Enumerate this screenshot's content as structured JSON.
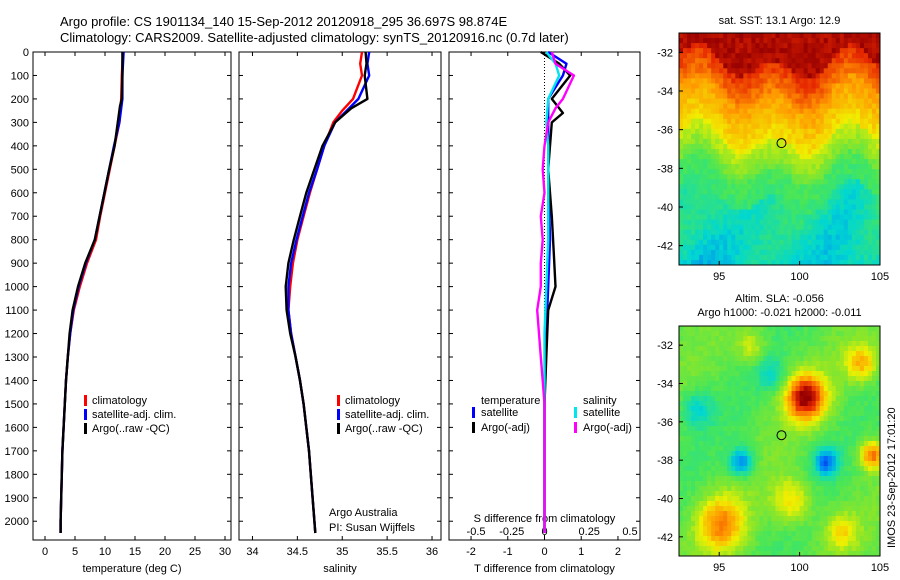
{
  "header": {
    "line1": "Argo profile: CS 1901134_140 15-Sep-2012 20120918_295 36.697S 98.874E",
    "line2": "Climatology: CARS2009. Satellite-adjusted climatology: synTS_20120916.nc (0.7d later)"
  },
  "footer": {
    "credit_org": "Argo Australia",
    "credit_pi": "PI: Susan Wijffels",
    "watermark": "IMOS 23-Sep-2012 17:01:20"
  },
  "colors": {
    "climatology": "#ff0000",
    "satellite": "#0000ff",
    "argo": "#000000",
    "sat_salinity": "#00e5ee",
    "argo_salinity": "#ff00ff"
  },
  "chart_data": [
    {
      "id": "temperature",
      "type": "line",
      "xlabel": "temperature (deg C)",
      "xlim": [
        -2,
        31
      ],
      "xticks": [
        0,
        5,
        10,
        15,
        20,
        25,
        30
      ],
      "ylim": [
        2080,
        0
      ],
      "yticks": [
        0,
        100,
        200,
        300,
        400,
        500,
        600,
        700,
        800,
        900,
        1000,
        1100,
        1200,
        1300,
        1400,
        1500,
        1600,
        1700,
        1800,
        1900,
        2000
      ],
      "legend": [
        "climatology",
        "satellite-adj. clim.",
        "Argo(..raw -QC)"
      ],
      "legend_position": "lower-center",
      "series": [
        {
          "name": "climatology",
          "color": "#ff0000",
          "points": [
            [
              13.0,
              0
            ],
            [
              12.8,
              100
            ],
            [
              12.7,
              200
            ],
            [
              12.4,
              300
            ],
            [
              11.6,
              400
            ],
            [
              10.8,
              500
            ],
            [
              10.0,
              600
            ],
            [
              9.2,
              700
            ],
            [
              8.5,
              800
            ],
            [
              7.0,
              900
            ],
            [
              5.8,
              1000
            ],
            [
              4.8,
              1100
            ],
            [
              4.2,
              1200
            ],
            [
              3.8,
              1300
            ],
            [
              3.5,
              1400
            ],
            [
              3.3,
              1500
            ],
            [
              3.1,
              1600
            ],
            [
              2.9,
              1700
            ],
            [
              2.8,
              1800
            ],
            [
              2.7,
              1900
            ],
            [
              2.6,
              2000
            ],
            [
              2.6,
              2050
            ]
          ]
        },
        {
          "name": "satellite-adj. clim.",
          "color": "#0000ff",
          "points": [
            [
              13.1,
              0
            ],
            [
              12.9,
              100
            ],
            [
              12.9,
              200
            ],
            [
              12.4,
              300
            ],
            [
              11.5,
              400
            ],
            [
              10.7,
              500
            ],
            [
              9.9,
              600
            ],
            [
              9.1,
              700
            ],
            [
              8.3,
              800
            ],
            [
              6.8,
              900
            ],
            [
              5.6,
              1000
            ],
            [
              4.7,
              1100
            ],
            [
              4.2,
              1200
            ],
            [
              3.8,
              1300
            ],
            [
              3.5,
              1400
            ],
            [
              3.3,
              1500
            ],
            [
              3.1,
              1600
            ],
            [
              2.9,
              1700
            ],
            [
              2.8,
              1800
            ],
            [
              2.7,
              1900
            ],
            [
              2.6,
              2000
            ],
            [
              2.6,
              2050
            ]
          ]
        },
        {
          "name": "Argo(..raw -QC)",
          "color": "#000000",
          "points": [
            [
              12.9,
              0
            ],
            [
              12.9,
              100
            ],
            [
              12.8,
              200
            ],
            [
              12.5,
              230
            ],
            [
              11.6,
              400
            ],
            [
              10.7,
              500
            ],
            [
              9.9,
              600
            ],
            [
              9.1,
              700
            ],
            [
              8.3,
              800
            ],
            [
              6.7,
              900
            ],
            [
              5.5,
              1000
            ],
            [
              4.6,
              1100
            ],
            [
              4.1,
              1200
            ],
            [
              3.8,
              1300
            ],
            [
              3.5,
              1400
            ],
            [
              3.3,
              1500
            ],
            [
              3.1,
              1600
            ],
            [
              2.9,
              1700
            ],
            [
              2.8,
              1800
            ],
            [
              2.7,
              1900
            ],
            [
              2.6,
              2000
            ],
            [
              2.6,
              2050
            ]
          ]
        }
      ]
    },
    {
      "id": "salinity",
      "type": "line",
      "xlabel": "salinity",
      "xlim": [
        33.85,
        36.1
      ],
      "xticks": [
        34,
        34.5,
        35,
        35.5,
        36
      ],
      "ylim": [
        2080,
        0
      ],
      "legend": [
        "climatology",
        "satellite-adj. clim.",
        "Argo(..raw -QC)"
      ],
      "legend_position": "lower-right",
      "series": [
        {
          "name": "climatology",
          "color": "#ff0000",
          "points": [
            [
              35.22,
              0
            ],
            [
              35.2,
              50
            ],
            [
              35.22,
              100
            ],
            [
              35.12,
              200
            ],
            [
              35.0,
              250
            ],
            [
              34.9,
              300
            ],
            [
              34.8,
              400
            ],
            [
              34.72,
              500
            ],
            [
              34.64,
              600
            ],
            [
              34.57,
              700
            ],
            [
              34.5,
              800
            ],
            [
              34.45,
              900
            ],
            [
              34.42,
              1000
            ],
            [
              34.4,
              1100
            ],
            [
              34.43,
              1200
            ],
            [
              34.48,
              1300
            ],
            [
              34.53,
              1400
            ],
            [
              34.57,
              1500
            ],
            [
              34.6,
              1600
            ],
            [
              34.63,
              1700
            ],
            [
              34.65,
              1800
            ],
            [
              34.67,
              1900
            ],
            [
              34.69,
              2000
            ],
            [
              34.7,
              2050
            ]
          ]
        },
        {
          "name": "satellite-adj. clim.",
          "color": "#0000ff",
          "points": [
            [
              35.3,
              0
            ],
            [
              35.28,
              50
            ],
            [
              35.3,
              100
            ],
            [
              35.18,
              200
            ],
            [
              35.05,
              250
            ],
            [
              34.92,
              300
            ],
            [
              34.8,
              400
            ],
            [
              34.72,
              500
            ],
            [
              34.63,
              600
            ],
            [
              34.56,
              700
            ],
            [
              34.49,
              800
            ],
            [
              34.43,
              900
            ],
            [
              34.4,
              1000
            ],
            [
              34.4,
              1100
            ],
            [
              34.43,
              1200
            ],
            [
              34.48,
              1300
            ],
            [
              34.53,
              1400
            ],
            [
              34.57,
              1500
            ],
            [
              34.6,
              1600
            ],
            [
              34.63,
              1700
            ],
            [
              34.65,
              1800
            ],
            [
              34.67,
              1900
            ],
            [
              34.69,
              2000
            ],
            [
              34.7,
              2050
            ]
          ]
        },
        {
          "name": "Argo(..raw -QC)",
          "color": "#000000",
          "points": [
            [
              35.26,
              0
            ],
            [
              35.27,
              50
            ],
            [
              35.25,
              100
            ],
            [
              35.28,
              200
            ],
            [
              35.1,
              240
            ],
            [
              34.92,
              300
            ],
            [
              34.78,
              400
            ],
            [
              34.69,
              500
            ],
            [
              34.6,
              600
            ],
            [
              34.53,
              700
            ],
            [
              34.46,
              800
            ],
            [
              34.4,
              900
            ],
            [
              34.37,
              1000
            ],
            [
              34.38,
              1100
            ],
            [
              34.42,
              1200
            ],
            [
              34.48,
              1300
            ],
            [
              34.53,
              1400
            ],
            [
              34.57,
              1500
            ],
            [
              34.6,
              1600
            ],
            [
              34.63,
              1700
            ],
            [
              34.65,
              1800
            ],
            [
              34.67,
              1900
            ],
            [
              34.69,
              2000
            ],
            [
              34.7,
              2050
            ]
          ]
        }
      ]
    },
    {
      "id": "differences",
      "type": "line",
      "xlabel": "T difference from climatology",
      "xlabel_top": "S difference from climatology",
      "xlim": [
        -2.6,
        2.6
      ],
      "xticks": [
        -2,
        -1,
        0,
        1,
        2
      ],
      "xticks_salinity": [
        "-0.5",
        "-0.25",
        "0",
        "0.25",
        "0.5"
      ],
      "ylim": [
        2080,
        0
      ],
      "legend": {
        "temperature_header": "temperature",
        "salinity_header": "salinity",
        "items": [
          "satellite",
          "Argo(-adj)",
          "satellite",
          "Argo(-adj)"
        ]
      },
      "series": [
        {
          "name": "temperature satellite",
          "color": "#0000ff",
          "points": [
            [
              0.1,
              0
            ],
            [
              0.6,
              50
            ],
            [
              0.5,
              100
            ],
            [
              0.1,
              200
            ],
            [
              0.1,
              300
            ],
            [
              0.1,
              500
            ],
            [
              0.15,
              800
            ],
            [
              0.1,
              1000
            ],
            [
              0.05,
              1200
            ],
            [
              0.0,
              1400
            ],
            [
              0.0,
              1600
            ],
            [
              0.0,
              1800
            ],
            [
              0.0,
              2050
            ]
          ]
        },
        {
          "name": "temperature Argo(-adj)",
          "color": "#000000",
          "points": [
            [
              -0.1,
              0
            ],
            [
              0.4,
              50
            ],
            [
              0.7,
              100
            ],
            [
              0.2,
              200
            ],
            [
              0.5,
              260
            ],
            [
              0.2,
              300
            ],
            [
              0.1,
              500
            ],
            [
              0.2,
              700
            ],
            [
              0.25,
              850
            ],
            [
              0.3,
              1000
            ],
            [
              0.1,
              1100
            ],
            [
              0.05,
              1300
            ],
            [
              0.0,
              1500
            ],
            [
              0.0,
              1700
            ],
            [
              0.0,
              2050
            ]
          ]
        },
        {
          "name": "salinity satellite",
          "color": "#00e5ee",
          "points": [
            [
              0.05,
              0
            ],
            [
              0.3,
              50
            ],
            [
              0.4,
              100
            ],
            [
              0.1,
              200
            ],
            [
              0.05,
              300
            ],
            [
              0.1,
              400
            ],
            [
              0.1,
              600
            ],
            [
              0.1,
              800
            ],
            [
              0.05,
              1000
            ],
            [
              0.0,
              1200
            ],
            [
              0.0,
              1400
            ],
            [
              0.0,
              1600
            ],
            [
              0.0,
              1800
            ],
            [
              0.0,
              2050
            ]
          ]
        },
        {
          "name": "salinity Argo(-adj)",
          "color": "#ff00ff",
          "points": [
            [
              0.2,
              0
            ],
            [
              0.3,
              50
            ],
            [
              0.8,
              100
            ],
            [
              0.5,
              200
            ],
            [
              0.3,
              240
            ],
            [
              0.1,
              300
            ],
            [
              0.0,
              400
            ],
            [
              -0.05,
              500
            ],
            [
              0.0,
              600
            ],
            [
              -0.1,
              700
            ],
            [
              -0.05,
              800
            ],
            [
              -0.1,
              900
            ],
            [
              -0.1,
              1000
            ],
            [
              -0.2,
              1100
            ],
            [
              -0.15,
              1200
            ],
            [
              -0.1,
              1300
            ],
            [
              -0.05,
              1400
            ],
            [
              0.0,
              1500
            ],
            [
              0.0,
              1600
            ],
            [
              0.0,
              1800
            ],
            [
              0.0,
              2050
            ]
          ]
        }
      ]
    },
    {
      "id": "sst-map",
      "type": "heatmap",
      "title": "sat. SST: 13.1 Argo: 12.9",
      "xticks": [
        95,
        100,
        105
      ],
      "yticks": [
        -32,
        -34,
        -36,
        -38,
        -40,
        -42
      ],
      "xlim": [
        92.5,
        105
      ],
      "ylim": [
        -43,
        -31
      ],
      "marker": [
        98.874,
        -36.697
      ]
    },
    {
      "id": "sla-map",
      "type": "heatmap",
      "title_line1": "Altim. SLA: -0.056",
      "title_line2": "Argo h1000: -0.021 h2000: -0.011",
      "xticks": [
        95,
        100,
        105
      ],
      "yticks": [
        -32,
        -34,
        -36,
        -38,
        -40,
        -42
      ],
      "xlim": [
        92.5,
        105
      ],
      "ylim": [
        -43,
        -31
      ],
      "marker": [
        98.874,
        -36.697
      ]
    }
  ]
}
